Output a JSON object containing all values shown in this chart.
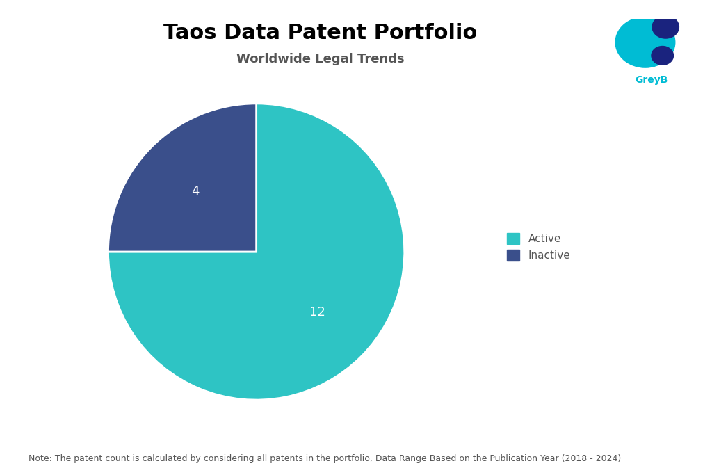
{
  "title": "Taos Data Patent Portfolio",
  "subtitle": "Worldwide Legal Trends",
  "values": [
    12,
    4
  ],
  "labels": [
    "Active",
    "Inactive"
  ],
  "colors": [
    "#2EC4C4",
    "#3A4F8B"
  ],
  "label_values": [
    "12",
    "4"
  ],
  "note": "Note: The patent count is calculated by considering all patents in the portfolio, Data Range Based on the Publication Year (2018 - 2024)",
  "title_fontsize": 22,
  "subtitle_fontsize": 13,
  "label_fontsize": 13,
  "note_fontsize": 9,
  "legend_fontsize": 11,
  "background_color": "#ffffff",
  "text_color": "#ffffff",
  "startangle": 90,
  "logo_text": "GreyB",
  "logo_circle1_color": "#00BCD4",
  "logo_circle2_color": "#1A237E",
  "logo_text_color": "#00BCD4"
}
